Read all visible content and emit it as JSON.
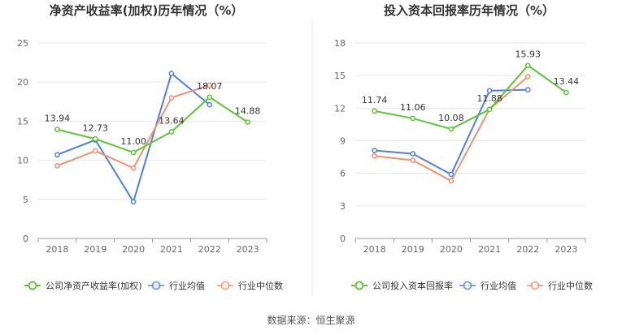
{
  "source_text": "数据来源：恒生聚源",
  "colors": {
    "company": "#5cc531",
    "avg": "#4f7fe0",
    "median": "#f39070",
    "axis": "#666666",
    "grid": "#e6e6e6",
    "title": "#333333"
  },
  "chart_data": [
    {
      "type": "line",
      "title": "净资产收益率(加权)历年情况（%）",
      "categories": [
        "2018",
        "2019",
        "2020",
        "2021",
        "2022",
        "2023"
      ],
      "ylim": [
        0,
        25
      ],
      "yticks": [
        0,
        5,
        10,
        15,
        20,
        25
      ],
      "grid": true,
      "legend_position": "bottom",
      "series": [
        {
          "name": "公司净资产收益率(加权)",
          "color_key": "company",
          "values": [
            13.94,
            12.73,
            11.0,
            13.64,
            18.07,
            14.88
          ],
          "labels": [
            "13.94",
            "12.73",
            "11.00",
            "13.64",
            "18.07",
            "14.88"
          ]
        },
        {
          "name": "行业均值",
          "color_key": "avg",
          "values": [
            10.7,
            12.6,
            4.7,
            21.1,
            17.1,
            null
          ]
        },
        {
          "name": "行业中位数",
          "color_key": "median",
          "values": [
            9.3,
            11.2,
            9.0,
            18.0,
            19.6,
            null
          ]
        }
      ]
    },
    {
      "type": "line",
      "title": "投入资本回报率历年情况（%）",
      "categories": [
        "2018",
        "2019",
        "2020",
        "2021",
        "2022",
        "2023"
      ],
      "ylim": [
        0,
        18
      ],
      "yticks": [
        0,
        3,
        6,
        9,
        12,
        15,
        18
      ],
      "grid": true,
      "legend_position": "bottom",
      "series": [
        {
          "name": "公司投入资本回报率",
          "color_key": "company",
          "values": [
            11.74,
            11.06,
            10.08,
            11.88,
            15.93,
            13.44
          ],
          "labels": [
            "11.74",
            "11.06",
            "10.08",
            "11.88",
            "15.93",
            "13.44"
          ]
        },
        {
          "name": "行业均值",
          "color_key": "avg",
          "values": [
            8.1,
            7.8,
            5.9,
            13.6,
            13.7,
            null
          ]
        },
        {
          "name": "行业中位数",
          "color_key": "median",
          "values": [
            7.6,
            7.2,
            5.3,
            11.9,
            14.9,
            null
          ]
        }
      ]
    }
  ]
}
